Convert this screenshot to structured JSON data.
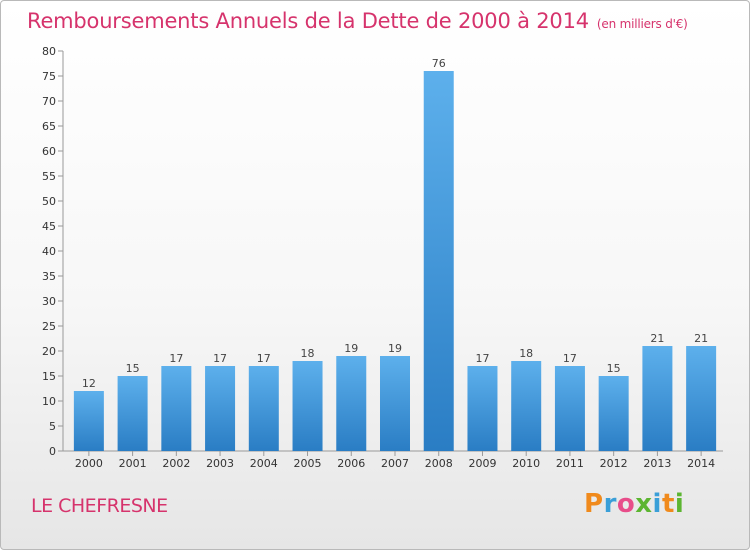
{
  "chart_data": {
    "type": "bar",
    "title": "Remboursements Annuels de la Dette de 2000 à 2014",
    "unit_note": "(en milliers d'€)",
    "categories": [
      "2000",
      "2001",
      "2002",
      "2003",
      "2004",
      "2005",
      "2006",
      "2007",
      "2008",
      "2009",
      "2010",
      "2011",
      "2012",
      "2013",
      "2014"
    ],
    "values": [
      12,
      15,
      17,
      17,
      17,
      18,
      19,
      19,
      76,
      17,
      18,
      17,
      15,
      21,
      21
    ],
    "ylim": [
      0,
      80
    ],
    "yticks": [
      0,
      5,
      10,
      15,
      20,
      25,
      30,
      35,
      40,
      45,
      50,
      55,
      60,
      65,
      70,
      75,
      80
    ],
    "grid": false,
    "bar_color": "#3a93dd"
  },
  "location": "LE CHEFRESNE",
  "logo": {
    "text": "Proxiti",
    "letters": [
      "P",
      "r",
      "o",
      "x",
      "i",
      "t",
      "i"
    ],
    "colors": [
      "#f08a1c",
      "#3a9fd8",
      "#e84d8a",
      "#5cb531",
      "#3a9fd8",
      "#f08a1c",
      "#5cb531"
    ]
  }
}
